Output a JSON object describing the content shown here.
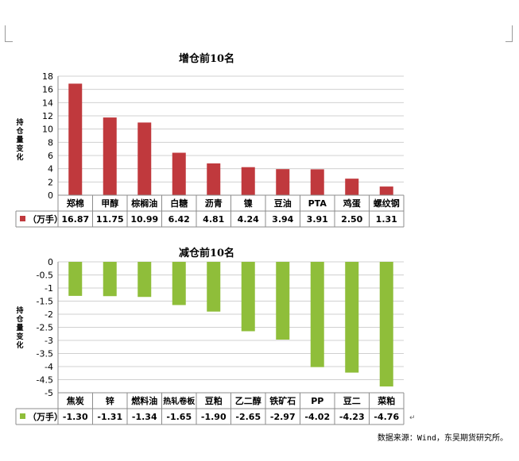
{
  "chart_data": [
    {
      "type": "bar",
      "title": "增仓前10名",
      "ylabel": "持仓量变化",
      "categories": [
        "郑棉",
        "甲醇",
        "棕榈油",
        "白糖",
        "沥青",
        "镍",
        "豆油",
        "PTA",
        "鸡蛋",
        "螺纹钢"
      ],
      "series": [
        {
          "name": "（万手）",
          "values": [
            16.87,
            11.75,
            10.99,
            6.42,
            4.81,
            4.24,
            3.94,
            3.91,
            2.5,
            1.31
          ],
          "labels": [
            "16.87",
            "11.75",
            "10.99",
            "6.42",
            "4.81",
            "4.24",
            "3.94",
            "3.91",
            "2.50",
            "1.31"
          ]
        }
      ],
      "ylim": [
        0,
        18
      ],
      "yticks": [
        0,
        2,
        4,
        6,
        8,
        10,
        12,
        14,
        16,
        18
      ],
      "grid": true,
      "legend": "data-table",
      "color": "#c0393d"
    },
    {
      "type": "bar",
      "title": "减仓前10名",
      "ylabel": "持仓量变化",
      "categories": [
        "焦炭",
        "锌",
        "燃料油",
        "热轧卷板",
        "豆粕",
        "乙二醇",
        "铁矿石",
        "PP",
        "豆二",
        "菜粕"
      ],
      "series": [
        {
          "name": "（万手）",
          "values": [
            -1.3,
            -1.31,
            -1.34,
            -1.65,
            -1.9,
            -2.65,
            -2.97,
            -4.02,
            -4.23,
            -4.76
          ],
          "labels": [
            "-1.30",
            "-1.31",
            "-1.34",
            "-1.65",
            "-1.90",
            "-2.65",
            "-2.97",
            "-4.02",
            "-4.23",
            "-4.76"
          ]
        }
      ],
      "ylim": [
        -5,
        0
      ],
      "yticks": [
        0,
        -0.5,
        -1,
        -1.5,
        -2,
        -2.5,
        -3,
        -3.5,
        -4,
        -4.5,
        -5
      ],
      "grid": true,
      "legend": "data-table",
      "color": "#8fbe3a"
    }
  ],
  "source": "数据来源：Wind，东吴期货研究所。",
  "return_mark": "↵"
}
